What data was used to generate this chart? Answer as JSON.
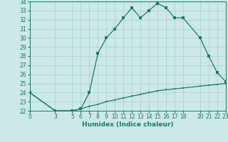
{
  "xlabel": "Humidex (Indice chaleur)",
  "upper_x": [
    0,
    3,
    5,
    6,
    7,
    8,
    9,
    10,
    11,
    12,
    13,
    14,
    15,
    16,
    17,
    18,
    20,
    21,
    22,
    23
  ],
  "upper_y": [
    24,
    22,
    22,
    22.2,
    24,
    28.3,
    30,
    31,
    32.2,
    33.3,
    32.2,
    33,
    33.8,
    33.3,
    32.2,
    32.2,
    30,
    28,
    26.2,
    25.2
  ],
  "lower_x": [
    0,
    3,
    5,
    6,
    7,
    8,
    9,
    10,
    11,
    12,
    13,
    14,
    15,
    16,
    17,
    18,
    20,
    21,
    22,
    23
  ],
  "lower_y": [
    24,
    22,
    22,
    22.2,
    22.5,
    22.7,
    23.0,
    23.2,
    23.4,
    23.6,
    23.8,
    24.0,
    24.2,
    24.3,
    24.4,
    24.5,
    24.7,
    24.8,
    24.9,
    25.0
  ],
  "line_color": "#1a7a6e",
  "bg_color": "#cce8e8",
  "grid_color": "#aad4d4",
  "xlim": [
    0,
    23
  ],
  "ylim": [
    22,
    34
  ],
  "xticks": [
    0,
    3,
    5,
    6,
    7,
    8,
    9,
    10,
    11,
    12,
    13,
    14,
    15,
    16,
    17,
    18,
    20,
    21,
    22,
    23
  ],
  "yticks": [
    22,
    23,
    24,
    25,
    26,
    27,
    28,
    29,
    30,
    31,
    32,
    33,
    34
  ],
  "tick_fontsize": 5.5,
  "xlabel_fontsize": 6.5
}
